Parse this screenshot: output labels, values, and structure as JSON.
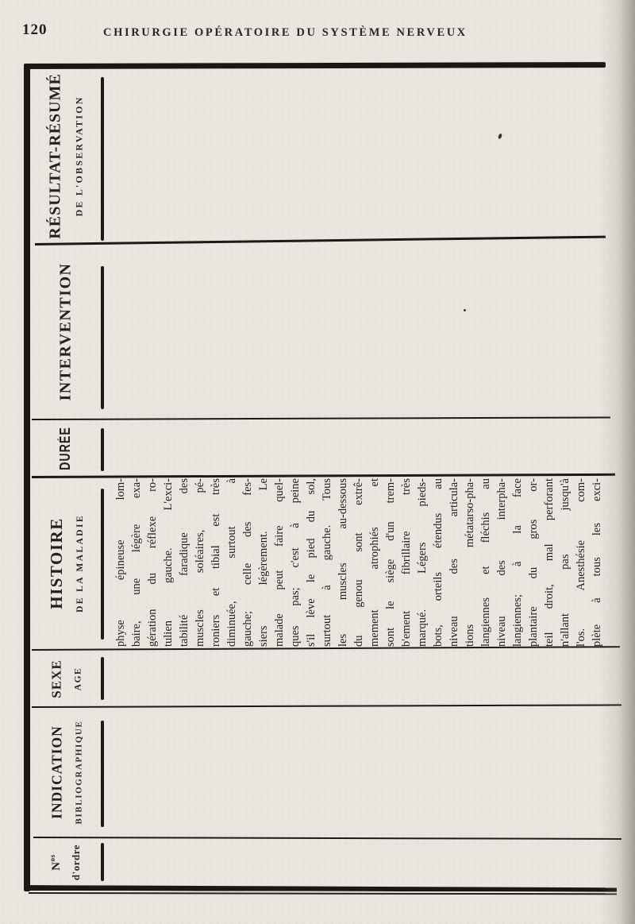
{
  "page": {
    "number": "120",
    "running_title": "CHIRURGIE OPÉRATOIRE DU SYSTÈME NERVEUX"
  },
  "colors": {
    "paper": "#e9e6e0",
    "ink": "#24211c",
    "rule": "#1d1a15"
  },
  "table": {
    "headers": {
      "resultat": {
        "label": "RÉSULTAT-RÉSUMÉ",
        "sublabel": "DE L'OBSERVATION"
      },
      "intervention": {
        "label": "INTERVENTION",
        "sublabel": ""
      },
      "duree": {
        "label": "DURÉE",
        "sublabel": ""
      },
      "histoire": {
        "label": "HISTOIRE",
        "sublabel": "DE LA MALADIE"
      },
      "sexe": {
        "label": "SEXE",
        "sublabel": "AGE"
      },
      "indication": {
        "label": "INDICATION",
        "sublabel": "BIBLIOGRAPHIQUE"
      },
      "numero": {
        "label_prefix": "N",
        "label_sup": "os",
        "sublabel": "d'ordre"
      }
    },
    "histoire_cell_lines": [
      "physe épineuse lom-",
      "baire, une légère exa-",
      "gération du réflexe ro-",
      "tulien gauche. L'exci-",
      "tabilité faradique des",
      "muscles soléaires, pé-",
      "roniers et tibial est très",
      "diminuée, surtout à",
      "gauche; celle des fes-",
      "siers légèrement. Le",
      "malade peut faire quel-",
      "ques pas; c'est à peine",
      "s'il lève le pied du sol,",
      "surtout à gauche. Tous",
      "les muscles au-dessous",
      "du genou sont extrê-",
      "mement atrophiés et",
      "sont le siège d'un trem-",
      "b'ement fibrillaire très",
      "marqué. Légers pieds-",
      "bots, orteils étendus au",
      "niveau des articula-",
      "tions métatarso-pha-",
      "langiennes et fléchis au",
      "niveau des interpha-",
      "langiennes; à la face",
      "plantaire du gros or-",
      "teil droit, mal perforant",
      "n'allant pas jusqu'à",
      "l'os. Anesthésie com-",
      "plète à tous les exci-"
    ]
  }
}
